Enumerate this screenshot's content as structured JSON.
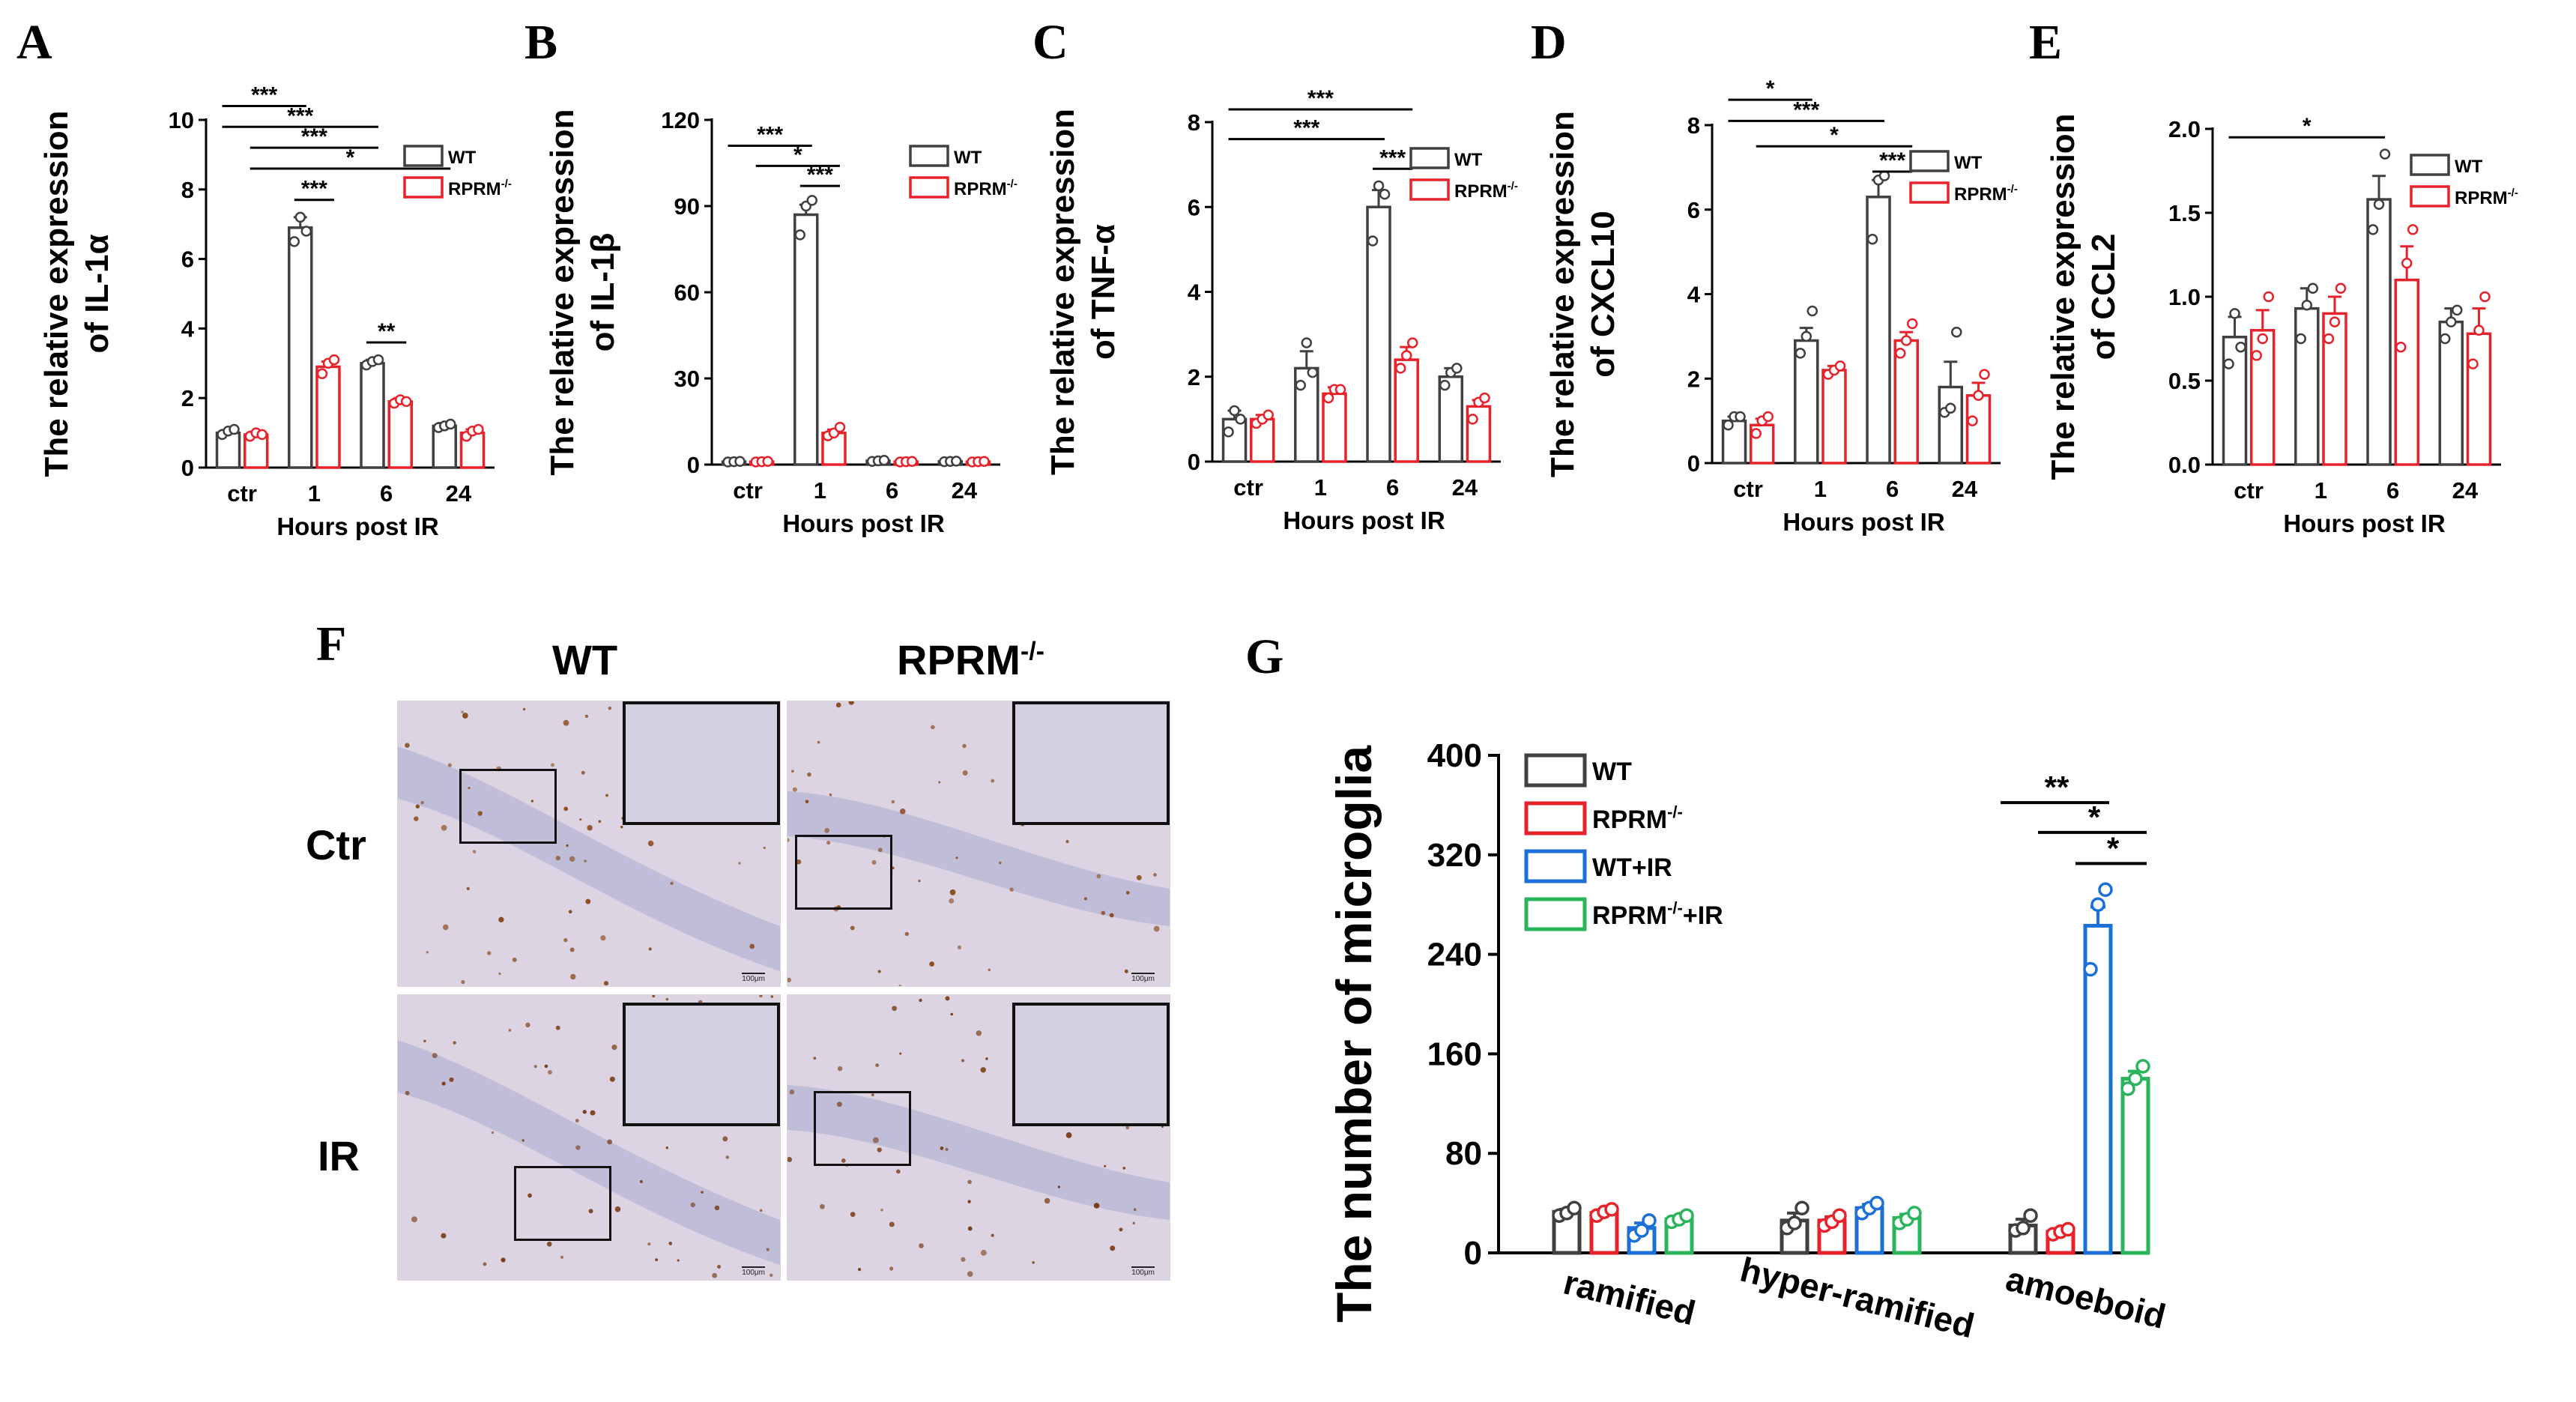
{
  "colors": {
    "WT": "#404040",
    "RPRM": "#e8222a",
    "WT_IR": "#1b6fd8",
    "RPRM_IR": "#2cb35e",
    "axis": "#000000",
    "tissue": "#d6cfe0",
    "stain": "#8a4a1c"
  },
  "legend_small": {
    "wt": "WT",
    "rprm": "RPRM",
    "rprm_sup": "-/-"
  },
  "chart_data": [
    {
      "panel": "A",
      "type": "bar",
      "title": "",
      "ylabel_line1": "The relative expression",
      "ylabel_line2": "of IL-1α",
      "xlabel": "Hours post  IR",
      "categories": [
        "ctr",
        "1",
        "6",
        "24"
      ],
      "ylim": [
        0,
        10
      ],
      "yticks": [
        "0",
        "2",
        "4",
        "6",
        "8",
        "10"
      ],
      "series": [
        {
          "name": "WT",
          "values": [
            1.0,
            6.9,
            3.0,
            1.2
          ],
          "sem": [
            0.08,
            0.3,
            0.1,
            0.08
          ],
          "points": [
            [
              0.95,
              1.05,
              1.1
            ],
            [
              6.5,
              7.2,
              6.8
            ],
            [
              2.95,
              3.05,
              3.1
            ],
            [
              1.15,
              1.2,
              1.25
            ]
          ]
        },
        {
          "name": "RPRM",
          "values": [
            0.95,
            2.9,
            1.9,
            1.0
          ],
          "sem": [
            0.08,
            0.15,
            0.1,
            0.1
          ],
          "points": [
            [
              0.9,
              1.0,
              0.95
            ],
            [
              2.7,
              3.0,
              3.1
            ],
            [
              1.85,
              1.95,
              1.9
            ],
            [
              0.9,
              1.05,
              1.1
            ]
          ]
        }
      ],
      "significance": [
        {
          "label": "***",
          "from": [
            0,
            "WT"
          ],
          "to": [
            1,
            "WT"
          ],
          "y": 10.4
        },
        {
          "label": "***",
          "from": [
            0,
            "WT"
          ],
          "to": [
            2,
            "WT"
          ],
          "y": 9.8
        },
        {
          "label": "***",
          "from": [
            0,
            "RPRM"
          ],
          "to": [
            2,
            "WT"
          ],
          "y": 9.2
        },
        {
          "label": "*",
          "from": [
            0,
            "RPRM"
          ],
          "to": [
            3,
            "WT"
          ],
          "y": 8.6
        },
        {
          "label": "***",
          "from": [
            1,
            "WT"
          ],
          "to": [
            1,
            "RPRM"
          ],
          "y": 7.7
        },
        {
          "label": "**",
          "from": [
            2,
            "WT"
          ],
          "to": [
            2,
            "RPRM"
          ],
          "y": 3.6
        }
      ]
    },
    {
      "panel": "B",
      "type": "bar",
      "title": "",
      "ylabel_line1": "The relative expression",
      "ylabel_line2": "of IL-1β",
      "xlabel": "Hours post  IR",
      "categories": [
        "ctr",
        "1",
        "6",
        "24"
      ],
      "ylim": [
        0,
        120
      ],
      "yticks": [
        "0",
        "30",
        "60",
        "90",
        "120"
      ],
      "series": [
        {
          "name": "WT",
          "values": [
            1.0,
            87,
            1.3,
            1.1
          ],
          "sem": [
            0.2,
            3.5,
            0.3,
            0.2
          ],
          "points": [
            [
              0.9,
              1.0,
              1.1
            ],
            [
              80,
              90,
              92
            ],
            [
              1.1,
              1.3,
              1.5
            ],
            [
              1.0,
              1.1,
              1.2
            ]
          ]
        },
        {
          "name": "RPRM",
          "values": [
            1.0,
            11,
            1.0,
            1.0
          ],
          "sem": [
            0.2,
            1.2,
            0.2,
            0.2
          ],
          "points": [
            [
              0.9,
              1.0,
              1.1
            ],
            [
              10,
              11,
              13
            ],
            [
              0.9,
              1.0,
              1.1
            ],
            [
              0.9,
              1.0,
              1.1
            ]
          ]
        }
      ],
      "significance": [
        {
          "label": "***",
          "from": [
            0,
            "WT"
          ],
          "to": [
            1,
            "WT"
          ],
          "y": 111
        },
        {
          "label": "*",
          "from": [
            0,
            "RPRM"
          ],
          "to": [
            1,
            "RPRM"
          ],
          "y": 104
        },
        {
          "label": "***",
          "from": [
            1,
            "WT"
          ],
          "to": [
            1,
            "RPRM"
          ],
          "y": 97
        }
      ]
    },
    {
      "panel": "C",
      "type": "bar",
      "title": "",
      "ylabel_line1": "The relative expression",
      "ylabel_line2": "of TNF-α",
      "xlabel": "Hours post  IR",
      "categories": [
        "ctr",
        "1",
        "6",
        "24"
      ],
      "ylim": [
        0,
        8
      ],
      "yticks": [
        "0",
        "2",
        "4",
        "6",
        "8"
      ],
      "series": [
        {
          "name": "WT",
          "values": [
            1.0,
            2.2,
            6.0,
            2.0
          ],
          "sem": [
            0.2,
            0.4,
            0.4,
            0.2
          ],
          "points": [
            [
              0.7,
              1.2,
              1.0
            ],
            [
              1.8,
              2.8,
              2.1
            ],
            [
              5.2,
              6.5,
              6.3
            ],
            [
              1.8,
              2.1,
              2.2
            ]
          ]
        },
        {
          "name": "RPRM",
          "values": [
            1.0,
            1.6,
            2.4,
            1.3
          ],
          "sem": [
            0.1,
            0.15,
            0.3,
            0.15
          ],
          "points": [
            [
              0.9,
              1.0,
              1.1
            ],
            [
              1.5,
              1.7,
              1.7
            ],
            [
              2.2,
              2.5,
              2.8
            ],
            [
              1.0,
              1.4,
              1.5
            ]
          ]
        }
      ],
      "significance": [
        {
          "label": "***",
          "from": [
            0,
            "WT"
          ],
          "to": [
            2,
            "RPRM"
          ],
          "y": 8.3
        },
        {
          "label": "***",
          "from": [
            0,
            "WT"
          ],
          "to": [
            2,
            "WT"
          ],
          "y": 7.6
        },
        {
          "label": "***",
          "from": [
            2,
            "WT"
          ],
          "to": [
            2,
            "RPRM"
          ],
          "y": 6.9
        }
      ]
    },
    {
      "panel": "D",
      "type": "bar",
      "title": "",
      "ylabel_line1": "The relative expression",
      "ylabel_line2": "of CXCL10",
      "xlabel": "Hours post  IR",
      "categories": [
        "ctr",
        "1",
        "6",
        "24"
      ],
      "ylim": [
        0,
        8
      ],
      "yticks": [
        "0",
        "2",
        "4",
        "6",
        "8"
      ],
      "series": [
        {
          "name": "WT",
          "values": [
            1.0,
            2.9,
            6.3,
            1.8
          ],
          "sem": [
            0.1,
            0.3,
            0.4,
            0.6
          ],
          "points": [
            [
              0.9,
              1.1,
              1.1
            ],
            [
              2.6,
              3.0,
              3.6
            ],
            [
              5.3,
              6.7,
              6.8
            ],
            [
              1.2,
              1.3,
              3.1
            ]
          ]
        },
        {
          "name": "RPRM",
          "values": [
            0.9,
            2.2,
            2.9,
            1.6
          ],
          "sem": [
            0.15,
            0.1,
            0.2,
            0.3
          ],
          "points": [
            [
              0.7,
              1.0,
              1.1
            ],
            [
              2.1,
              2.2,
              2.3
            ],
            [
              2.6,
              2.9,
              3.3
            ],
            [
              1.0,
              1.6,
              2.1
            ]
          ]
        }
      ],
      "significance": [
        {
          "label": "*",
          "from": [
            0,
            "WT"
          ],
          "to": [
            1,
            "WT"
          ],
          "y": 8.6
        },
        {
          "label": "***",
          "from": [
            0,
            "WT"
          ],
          "to": [
            2,
            "WT"
          ],
          "y": 8.1
        },
        {
          "label": "*",
          "from": [
            0,
            "RPRM"
          ],
          "to": [
            2,
            "RPRM"
          ],
          "y": 7.5
        },
        {
          "label": "***",
          "from": [
            2,
            "WT"
          ],
          "to": [
            2,
            "RPRM"
          ],
          "y": 6.9
        }
      ]
    },
    {
      "panel": "E",
      "type": "bar",
      "title": "",
      "ylabel_line1": "The relative expression",
      "ylabel_line2": "of CCL2",
      "xlabel": "Hours post  IR",
      "categories": [
        "ctr",
        "1",
        "6",
        "24"
      ],
      "ylim": [
        0,
        2.0
      ],
      "yticks": [
        "0.0",
        "0.5",
        "1.0",
        "1.5",
        "2.0"
      ],
      "series": [
        {
          "name": "WT",
          "values": [
            0.76,
            0.93,
            1.58,
            0.85
          ],
          "sem": [
            0.12,
            0.12,
            0.14,
            0.08
          ],
          "points": [
            [
              0.6,
              0.9,
              0.7
            ],
            [
              0.75,
              0.95,
              1.05
            ],
            [
              1.4,
              1.55,
              1.85
            ],
            [
              0.75,
              0.85,
              0.92
            ]
          ]
        },
        {
          "name": "RPRM",
          "values": [
            0.8,
            0.9,
            1.1,
            0.78
          ],
          "sem": [
            0.12,
            0.1,
            0.2,
            0.15
          ],
          "points": [
            [
              0.65,
              0.75,
              1.0
            ],
            [
              0.75,
              0.85,
              1.05
            ],
            [
              0.7,
              1.2,
              1.4
            ],
            [
              0.6,
              0.8,
              1.0
            ]
          ]
        }
      ],
      "significance": [
        {
          "label": "*",
          "from": [
            0,
            "WT"
          ],
          "to": [
            2,
            "WT"
          ],
          "y": 1.95
        }
      ]
    },
    {
      "panel": "G",
      "type": "bar",
      "title": "",
      "ylabel": "The number of microglia",
      "xlabel": "",
      "categories": [
        "ramified",
        "hyper-ramified",
        "amoeboid"
      ],
      "ylim": [
        0,
        400
      ],
      "yticks": [
        "0",
        "80",
        "160",
        "240",
        "320",
        "400"
      ],
      "series": [
        {
          "name": "WT",
          "values": [
            33,
            26,
            22
          ],
          "sem": [
            2,
            6,
            5
          ],
          "points": [
            [
              30,
              32,
              36
            ],
            [
              20,
              24,
              36
            ],
            [
              18,
              20,
              30
            ]
          ]
        },
        {
          "name": "RPRM-/-+x",
          "values": [
            32,
            26,
            17
          ],
          "sem": [
            2,
            3,
            2
          ],
          "points": [
            [
              30,
              33,
              35
            ],
            [
              22,
              25,
              30
            ],
            [
              15,
              17,
              19
            ]
          ]
        },
        {
          "name": "WT+IR",
          "values": [
            20,
            36,
            263
          ],
          "sem": [
            4,
            3,
            15
          ],
          "points": [
            [
              14,
              18,
              26
            ],
            [
              32,
              36,
              40
            ],
            [
              228,
              280,
              292
            ]
          ]
        },
        {
          "name": "RPRM+IR",
          "values": [
            27,
            28,
            140
          ],
          "sem": [
            2,
            3,
            6
          ],
          "points": [
            [
              25,
              27,
              30
            ],
            [
              24,
              27,
              32
            ],
            [
              132,
              140,
              150
            ]
          ]
        }
      ],
      "legend": [
        {
          "text": "WT",
          "sup": ""
        },
        {
          "text": "RPRM",
          "sup": "-/-",
          "after": ""
        },
        {
          "text": "WT+IR",
          "sup": ""
        },
        {
          "text": "RPRM",
          "sup": "-/-",
          "after": "+IR"
        }
      ],
      "significance": [
        {
          "label": "**",
          "from": [
            2,
            0
          ],
          "to": [
            2,
            2
          ],
          "y": 362
        },
        {
          "label": "*",
          "from": [
            2,
            1
          ],
          "to": [
            2,
            3
          ],
          "y": 338
        },
        {
          "label": "*",
          "from": [
            2,
            2
          ],
          "to": [
            2,
            3
          ],
          "y": 313
        }
      ]
    }
  ],
  "panel_letters": [
    "A",
    "B",
    "C",
    "D",
    "E",
    "F",
    "G"
  ],
  "micrographs": {
    "col_wt": "WT",
    "col_rprm": "RPRM",
    "col_rprm_sup": "-/-",
    "row_ctr": "Ctr",
    "row_ir": "IR",
    "scalebar": "100μm"
  }
}
